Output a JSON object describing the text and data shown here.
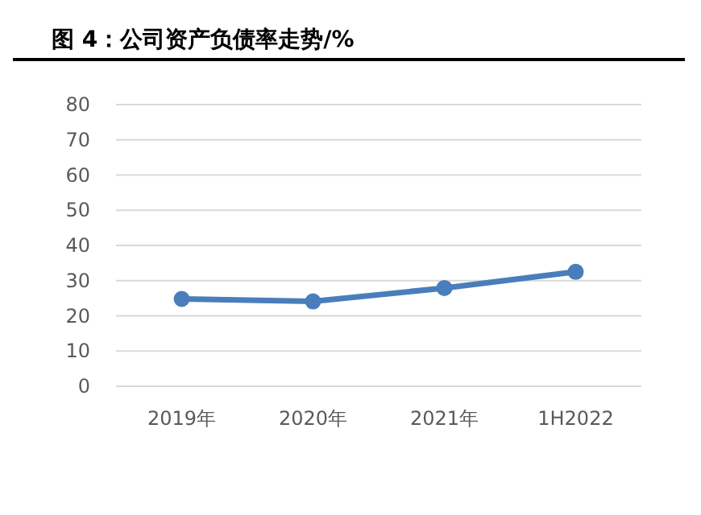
{
  "chart_data": {
    "type": "line",
    "title": "图 4：公司资产负债率走势/%",
    "categories": [
      "2019年",
      "2020年",
      "2021年",
      "1H2022"
    ],
    "series": [
      {
        "color": "#4a7ebb",
        "values": [
          24.8,
          24.1,
          27.9,
          32.5
        ]
      }
    ],
    "ylim": [
      0,
      80
    ],
    "yticks": [
      0,
      10,
      20,
      30,
      40,
      50,
      60,
      70,
      80
    ],
    "grid": "y",
    "marker": "circle",
    "line_style": "solid"
  }
}
